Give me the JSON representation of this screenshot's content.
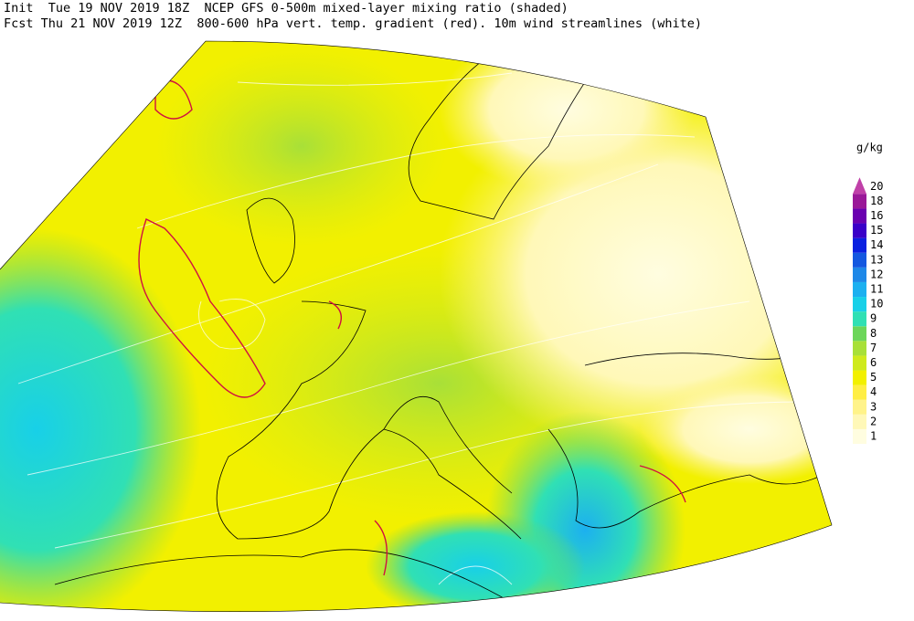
{
  "header": {
    "line1": "Init  Tue 19 NOV 2019 18Z  NCEP GFS 0-500m mixed-layer mixing ratio (shaded)",
    "line2": "Fcst Thu 21 NOV 2019 12Z  800-600 hPa vert. temp. gradient (red). 10m wind streamlines (white)"
  },
  "colorbar": {
    "unit": "g/kg",
    "levels": [
      1,
      2,
      3,
      4,
      5,
      6,
      7,
      8,
      9,
      10,
      11,
      12,
      13,
      14,
      15,
      16,
      18,
      20
    ],
    "colors": [
      "#fffde0",
      "#fff8b8",
      "#fff38a",
      "#ffee44",
      "#f2f000",
      "#cfea1c",
      "#a8e038",
      "#6cd65a",
      "#30e0b4",
      "#18d0e8",
      "#1cb0f0",
      "#1e88e8",
      "#1458e0",
      "#0a20e0",
      "#3a00c8",
      "#6a00b0",
      "#9a1898",
      "#c040a8"
    ]
  }
}
